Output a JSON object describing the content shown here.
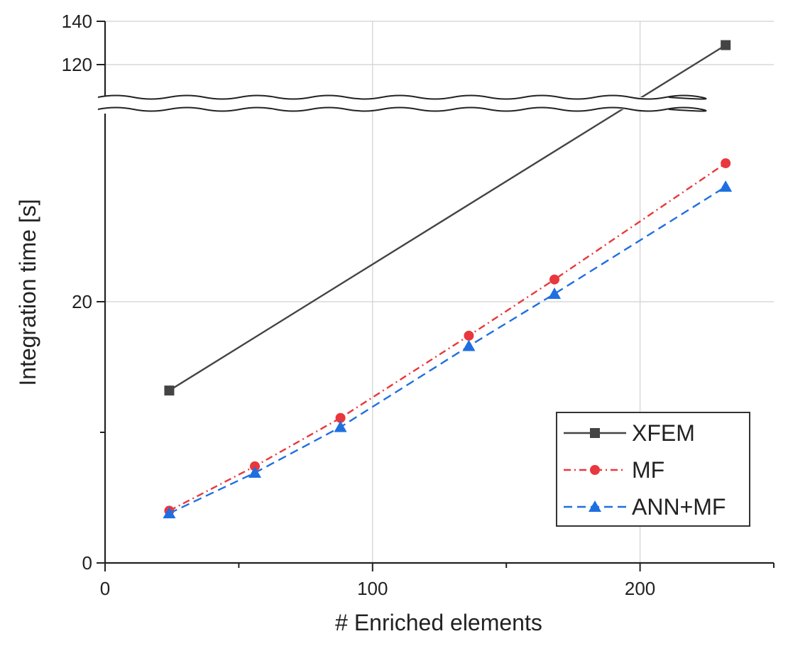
{
  "chart_data": {
    "type": "line",
    "xlabel": "# Enriched elements",
    "ylabel": "Integration time [s]",
    "xlim": [
      0,
      250
    ],
    "x_ticks": [
      0,
      100,
      200
    ],
    "y_broken_axis": true,
    "y_lower_range": [
      0,
      20
    ],
    "y_upper_range": [
      105,
      140
    ],
    "y_ticks_lower": [
      0,
      20
    ],
    "y_ticks_upper": [
      120,
      140
    ],
    "grid": true,
    "legend_position": "bottom-right",
    "series": [
      {
        "name": "XFEM",
        "color": "#444444",
        "line_style": "solid",
        "marker": "square",
        "x": [
          24,
          232
        ],
        "y": [
          13.2,
          129
        ]
      },
      {
        "name": "MF",
        "color": "#e8383d",
        "line_style": "dash-dot",
        "marker": "circle",
        "x": [
          24,
          56,
          88,
          136,
          168,
          232
        ],
        "y": [
          4.0,
          7.4,
          11.1,
          17.4,
          21.7,
          30.6
        ]
      },
      {
        "name": "ANN+MF",
        "color": "#1f6fe0",
        "line_style": "dashed",
        "marker": "triangle",
        "x": [
          24,
          56,
          88,
          136,
          168,
          232
        ],
        "y": [
          3.8,
          6.9,
          10.4,
          16.6,
          20.6,
          28.8
        ]
      }
    ]
  }
}
